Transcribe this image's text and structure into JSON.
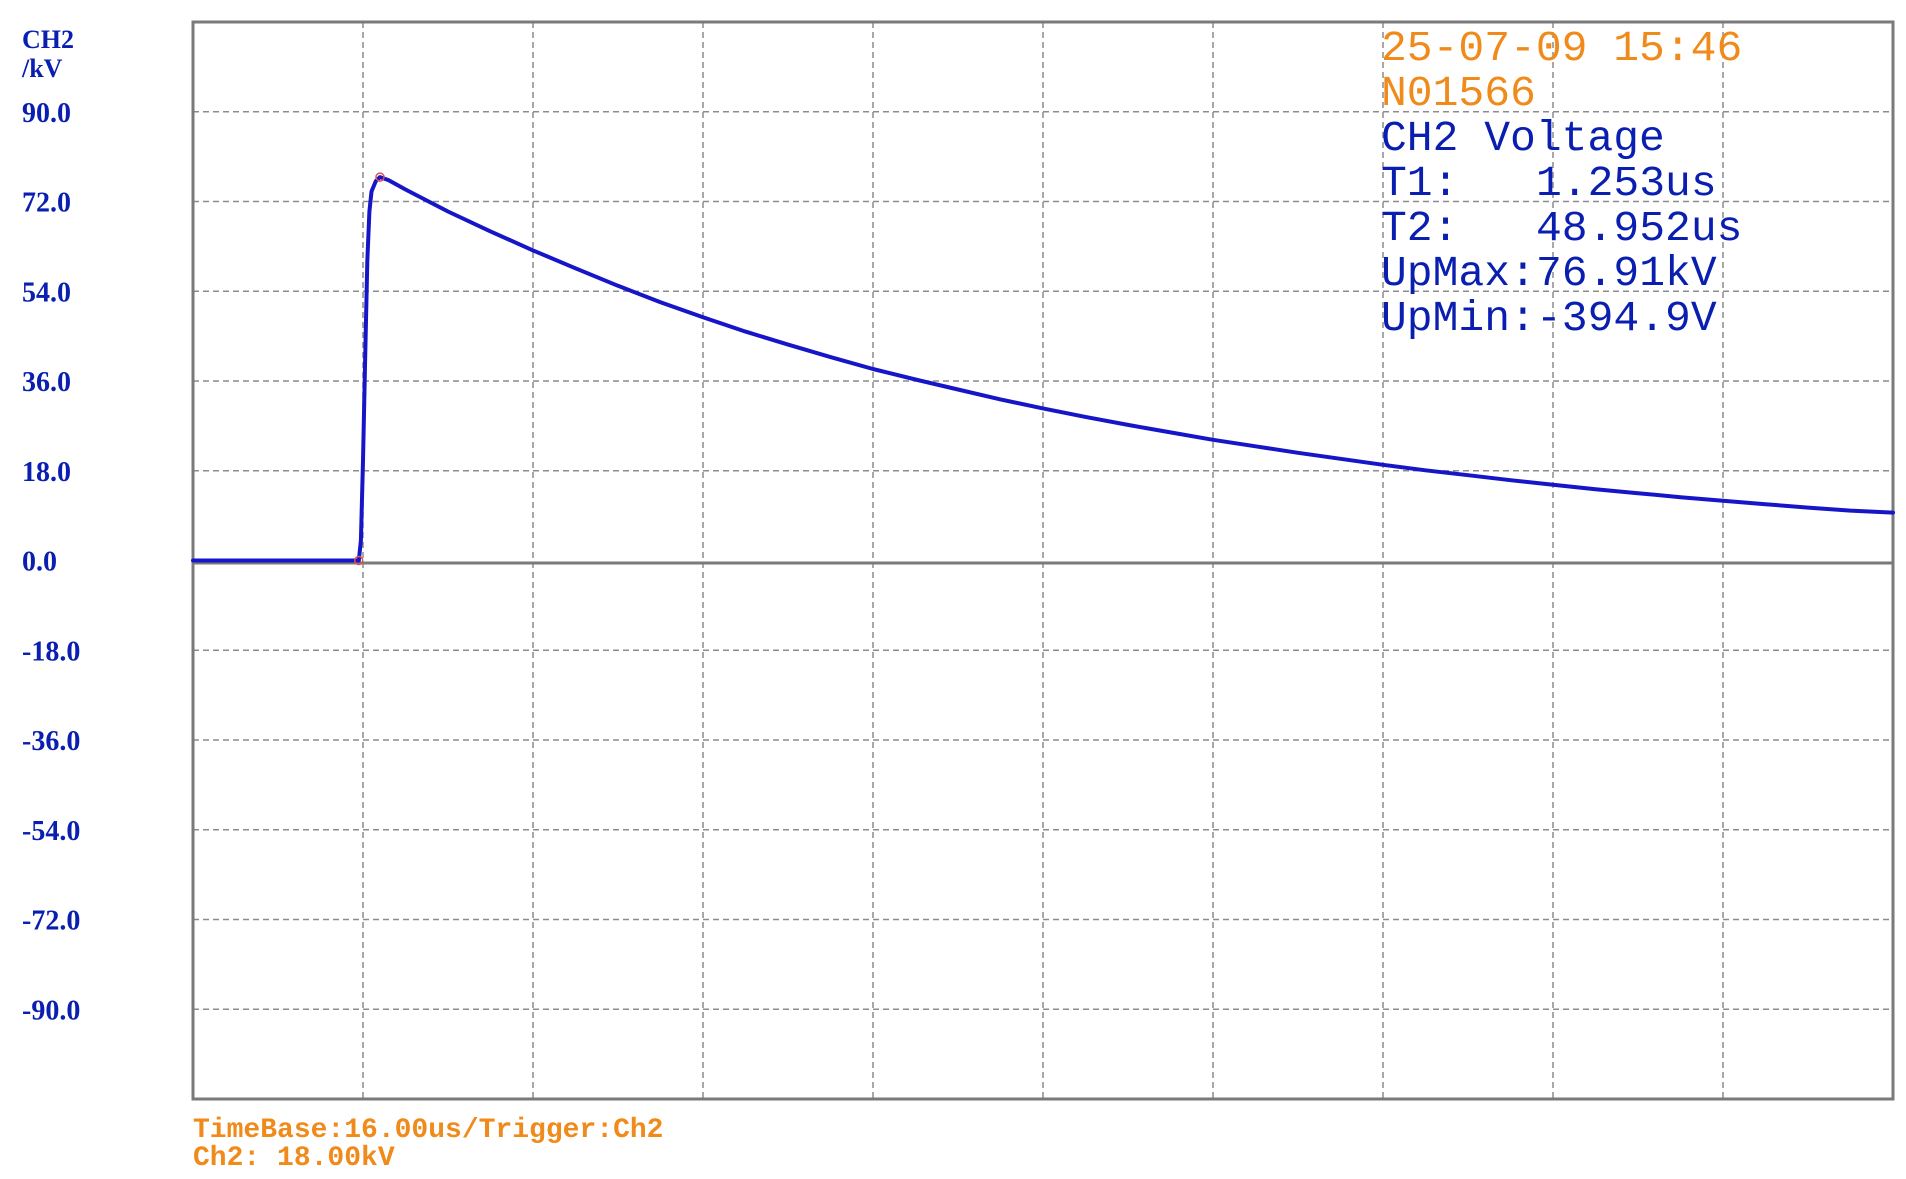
{
  "colors": {
    "axis_text": "#0a1fb0",
    "trace": "#1616c8",
    "info_orange": "#f08a1a",
    "info_blue": "#0a1fb0",
    "grid": "#8c8c8c",
    "frame": "#7a7a7a",
    "marker": "#e05050"
  },
  "channel_label": "CH2",
  "unit_label": "/kV",
  "info_panel": {
    "datetime": "25-07-09 15:46",
    "record_id": "N01566",
    "channel_title": "CH2 Voltage",
    "t1_label": "T1:",
    "t1_value": "1.253us",
    "t2_label": "T2:",
    "t2_value": "48.952us",
    "upmax_label": "UpMax:",
    "upmax_value": "76.91kV",
    "upmin_label": "UpMin:",
    "upmin_value": "-394.9V"
  },
  "footer": {
    "timebase": "TimeBase:16.00us/Trigger:Ch2",
    "ch2_scale": "Ch2: 18.00kV"
  },
  "chart_data": {
    "type": "line",
    "title": "",
    "xlabel": "",
    "ylabel": "/kV",
    "x_unit": "us",
    "xlim": [
      0,
      160
    ],
    "ylim": [
      -108,
      108
    ],
    "x_divisions": 10,
    "grid": true,
    "y_tick_labels": [
      "90.0",
      "72.0",
      "54.0",
      "36.0",
      "18.0",
      "0.0",
      "-18.0",
      "-36.0",
      "-54.0",
      "-72.0",
      "-90.0"
    ],
    "y_tick_values": [
      90,
      72,
      54,
      36,
      18,
      0,
      -18,
      -36,
      -54,
      -72,
      -90
    ],
    "series": [
      {
        "points": [
          [
            0,
            0
          ],
          [
            15.6,
            0
          ],
          [
            15.8,
            4
          ],
          [
            16.0,
            20
          ],
          [
            16.2,
            40
          ],
          [
            16.4,
            60
          ],
          [
            16.6,
            70
          ],
          [
            16.8,
            74
          ],
          [
            17.2,
            76.1
          ],
          [
            17.6,
            76.9
          ],
          [
            18.4,
            76.3
          ],
          [
            20,
            74.4
          ],
          [
            24,
            70
          ],
          [
            28,
            66
          ],
          [
            32,
            62.2
          ],
          [
            36,
            58.6
          ],
          [
            40,
            55.1
          ],
          [
            44,
            51.8
          ],
          [
            48,
            48.8
          ],
          [
            52,
            45.9
          ],
          [
            56,
            43.3
          ],
          [
            60,
            40.8
          ],
          [
            64,
            38.4
          ],
          [
            68,
            36.3
          ],
          [
            72,
            34.3
          ],
          [
            76,
            32.3
          ],
          [
            80,
            30.5
          ],
          [
            84,
            28.8
          ],
          [
            88,
            27.2
          ],
          [
            92,
            25.7
          ],
          [
            96,
            24.2
          ],
          [
            100,
            22.9
          ],
          [
            104,
            21.6
          ],
          [
            108,
            20.4
          ],
          [
            112,
            19.2
          ],
          [
            116,
            18.1
          ],
          [
            120,
            17.1
          ],
          [
            124,
            16.1
          ],
          [
            128,
            15.2
          ],
          [
            132,
            14.3
          ],
          [
            136,
            13.5
          ],
          [
            140,
            12.7
          ],
          [
            144,
            12.0
          ],
          [
            148,
            11.3
          ],
          [
            152,
            10.6
          ],
          [
            156,
            10.0
          ],
          [
            160,
            9.6
          ]
        ]
      }
    ],
    "markers": [
      {
        "x": 15.6,
        "y": 0
      },
      {
        "x": 17.6,
        "y": 76.9
      }
    ]
  }
}
